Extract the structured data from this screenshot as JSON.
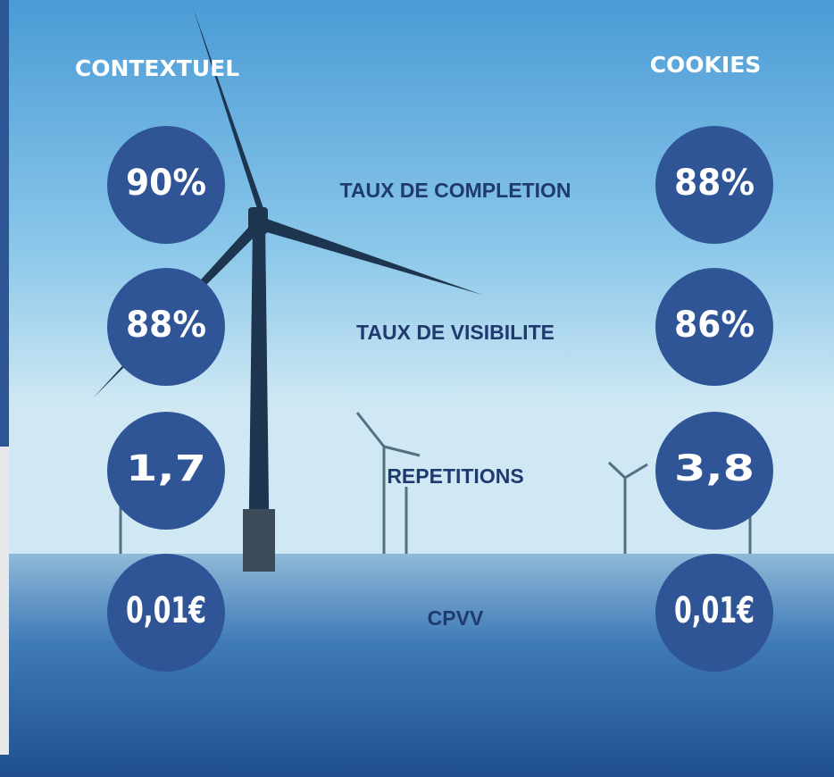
{
  "headers": {
    "left": "CONTEXTUEL",
    "right": "COOKIES"
  },
  "rows": [
    {
      "label": "TAUX DE COMPLETION",
      "contextuel": "90%",
      "cookies": "88%"
    },
    {
      "label": "TAUX DE VISIBILITE",
      "contextuel": "88%",
      "cookies": "86%"
    },
    {
      "label": "REPETITIONS",
      "contextuel": "1,7",
      "cookies": "3,8"
    },
    {
      "label": "CPVV",
      "contextuel": "0,01€",
      "cookies": "0,01€"
    }
  ]
}
